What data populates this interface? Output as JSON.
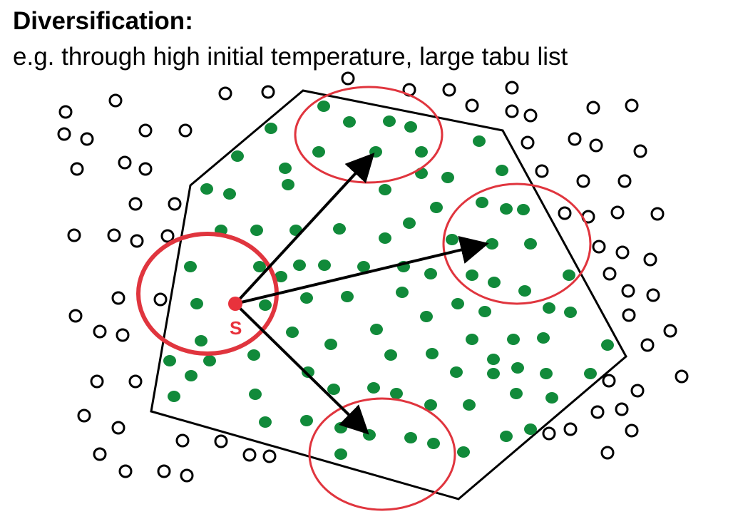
{
  "slide": {
    "title": "Diversification:",
    "subtitle": "e.g. through high initial temperature, large tabu list"
  },
  "diagram": {
    "start_label": "S",
    "colors": {
      "good_solution": "#118a3a",
      "other_solution": "#000000",
      "start_point": "#e8323c",
      "neighborhood": "#e0353e",
      "boundary": "#000000",
      "arrow": "#000000"
    }
  }
}
